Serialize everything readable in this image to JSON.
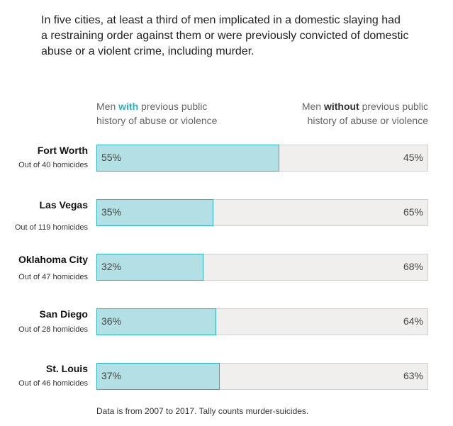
{
  "title": "In five cities, at least a third of men implicated in a domestic slaying had a restraining order against them or were previously convicted of domestic abuse or a violent crime, including murder.",
  "legend": {
    "left_pre": "Men ",
    "left_em": "with",
    "left_post": " previous public",
    "left_line2": "history of abuse or violence",
    "right_pre": "Men ",
    "right_em": "without",
    "right_post": " previous public",
    "right_line2": "history of abuse or violence"
  },
  "note": "Data is from 2007 to 2017. Tally counts murder-suicides.",
  "colors": {
    "with_fill": "#b2e0e4",
    "with_border": "#2ab3c0",
    "without_fill": "#f0efed"
  },
  "chart_data": {
    "type": "bar",
    "orientation": "horizontal",
    "stacked": true,
    "unit": "%",
    "xlim": [
      0,
      100
    ],
    "categories": [
      "Fort Worth",
      "Las Vegas",
      "Oklahoma City",
      "San Diego",
      "St. Louis"
    ],
    "subtitles": [
      "Out of 40 homicides",
      "Out of 119 homicides",
      "Out of 47 homicides",
      "Out of 28 homicides",
      "Out of 46 homicides"
    ],
    "series": [
      {
        "name": "Men with previous public history of abuse or violence",
        "values": [
          55,
          35,
          32,
          36,
          37
        ],
        "labels": [
          "55%",
          "35%",
          "32%",
          "36%",
          "37%"
        ]
      },
      {
        "name": "Men without previous public history of abuse or violence",
        "values": [
          45,
          65,
          68,
          64,
          63
        ],
        "labels": [
          "45%",
          "65%",
          "68%",
          "64%",
          "63%"
        ]
      }
    ]
  }
}
